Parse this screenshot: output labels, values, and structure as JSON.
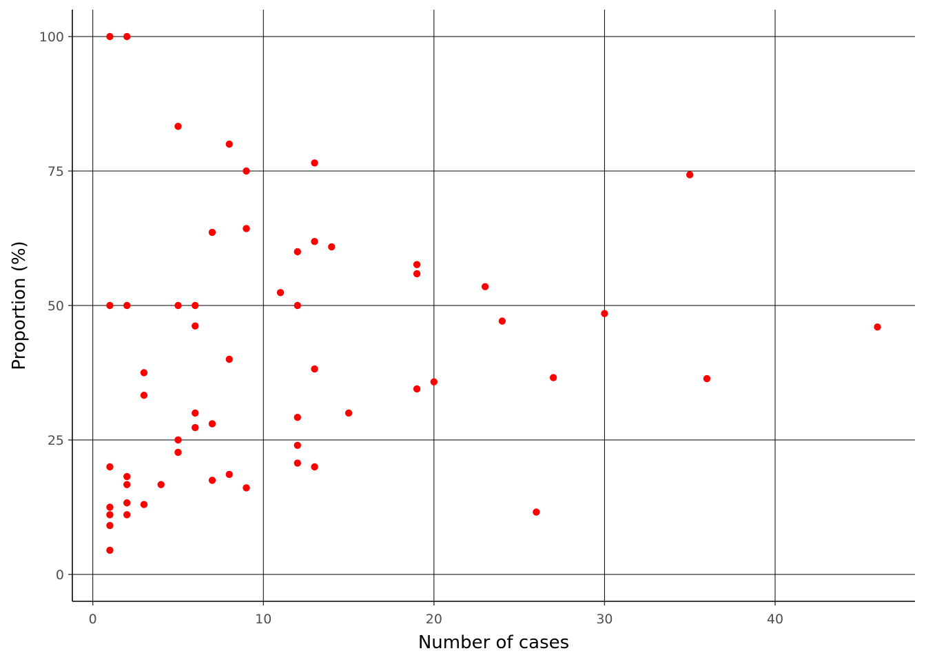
{
  "chart_data": {
    "type": "scatter",
    "xlabel": "Number of cases",
    "ylabel": "Proportion (%)",
    "xlim": [
      -1.2,
      48.2
    ],
    "ylim": [
      -5,
      105
    ],
    "x_ticks": [
      0,
      10,
      20,
      30,
      40
    ],
    "y_ticks": [
      0,
      25,
      50,
      75,
      100
    ],
    "grid": true,
    "legend": "none",
    "point_color": "#ff0000",
    "points": [
      {
        "x": 1,
        "y": 100
      },
      {
        "x": 2,
        "y": 100
      },
      {
        "x": 5,
        "y": 83.3
      },
      {
        "x": 8,
        "y": 80
      },
      {
        "x": 13,
        "y": 76.5
      },
      {
        "x": 9,
        "y": 75
      },
      {
        "x": 35,
        "y": 74.3
      },
      {
        "x": 9,
        "y": 64.3
      },
      {
        "x": 7,
        "y": 63.6
      },
      {
        "x": 13,
        "y": 61.9
      },
      {
        "x": 14,
        "y": 60.9
      },
      {
        "x": 12,
        "y": 60
      },
      {
        "x": 19,
        "y": 57.6
      },
      {
        "x": 19,
        "y": 55.9
      },
      {
        "x": 23,
        "y": 53.5
      },
      {
        "x": 11,
        "y": 52.4
      },
      {
        "x": 1,
        "y": 50
      },
      {
        "x": 2,
        "y": 50
      },
      {
        "x": 5,
        "y": 50
      },
      {
        "x": 6,
        "y": 50
      },
      {
        "x": 12,
        "y": 50
      },
      {
        "x": 30,
        "y": 48.5
      },
      {
        "x": 24,
        "y": 47.1
      },
      {
        "x": 6,
        "y": 46.2
      },
      {
        "x": 46,
        "y": 46
      },
      {
        "x": 8,
        "y": 40
      },
      {
        "x": 13,
        "y": 38.2
      },
      {
        "x": 3,
        "y": 37.5
      },
      {
        "x": 27,
        "y": 36.6
      },
      {
        "x": 36,
        "y": 36.4
      },
      {
        "x": 20,
        "y": 35.8
      },
      {
        "x": 19,
        "y": 34.5
      },
      {
        "x": 3,
        "y": 33.3
      },
      {
        "x": 6,
        "y": 30
      },
      {
        "x": 15,
        "y": 30
      },
      {
        "x": 12,
        "y": 29.2
      },
      {
        "x": 7,
        "y": 28
      },
      {
        "x": 6,
        "y": 27.3
      },
      {
        "x": 5,
        "y": 25
      },
      {
        "x": 12,
        "y": 24
      },
      {
        "x": 5,
        "y": 22.7
      },
      {
        "x": 12,
        "y": 20.7
      },
      {
        "x": 1,
        "y": 20
      },
      {
        "x": 13,
        "y": 20
      },
      {
        "x": 8,
        "y": 18.6
      },
      {
        "x": 2,
        "y": 18.2
      },
      {
        "x": 7,
        "y": 17.5
      },
      {
        "x": 2,
        "y": 16.7
      },
      {
        "x": 4,
        "y": 16.7
      },
      {
        "x": 9,
        "y": 16.1
      },
      {
        "x": 2,
        "y": 13.3
      },
      {
        "x": 3,
        "y": 13
      },
      {
        "x": 1,
        "y": 12.5
      },
      {
        "x": 26,
        "y": 11.6
      },
      {
        "x": 1,
        "y": 11.1
      },
      {
        "x": 2,
        "y": 11.1
      },
      {
        "x": 1,
        "y": 9.1
      },
      {
        "x": 1,
        "y": 4.5
      }
    ]
  }
}
